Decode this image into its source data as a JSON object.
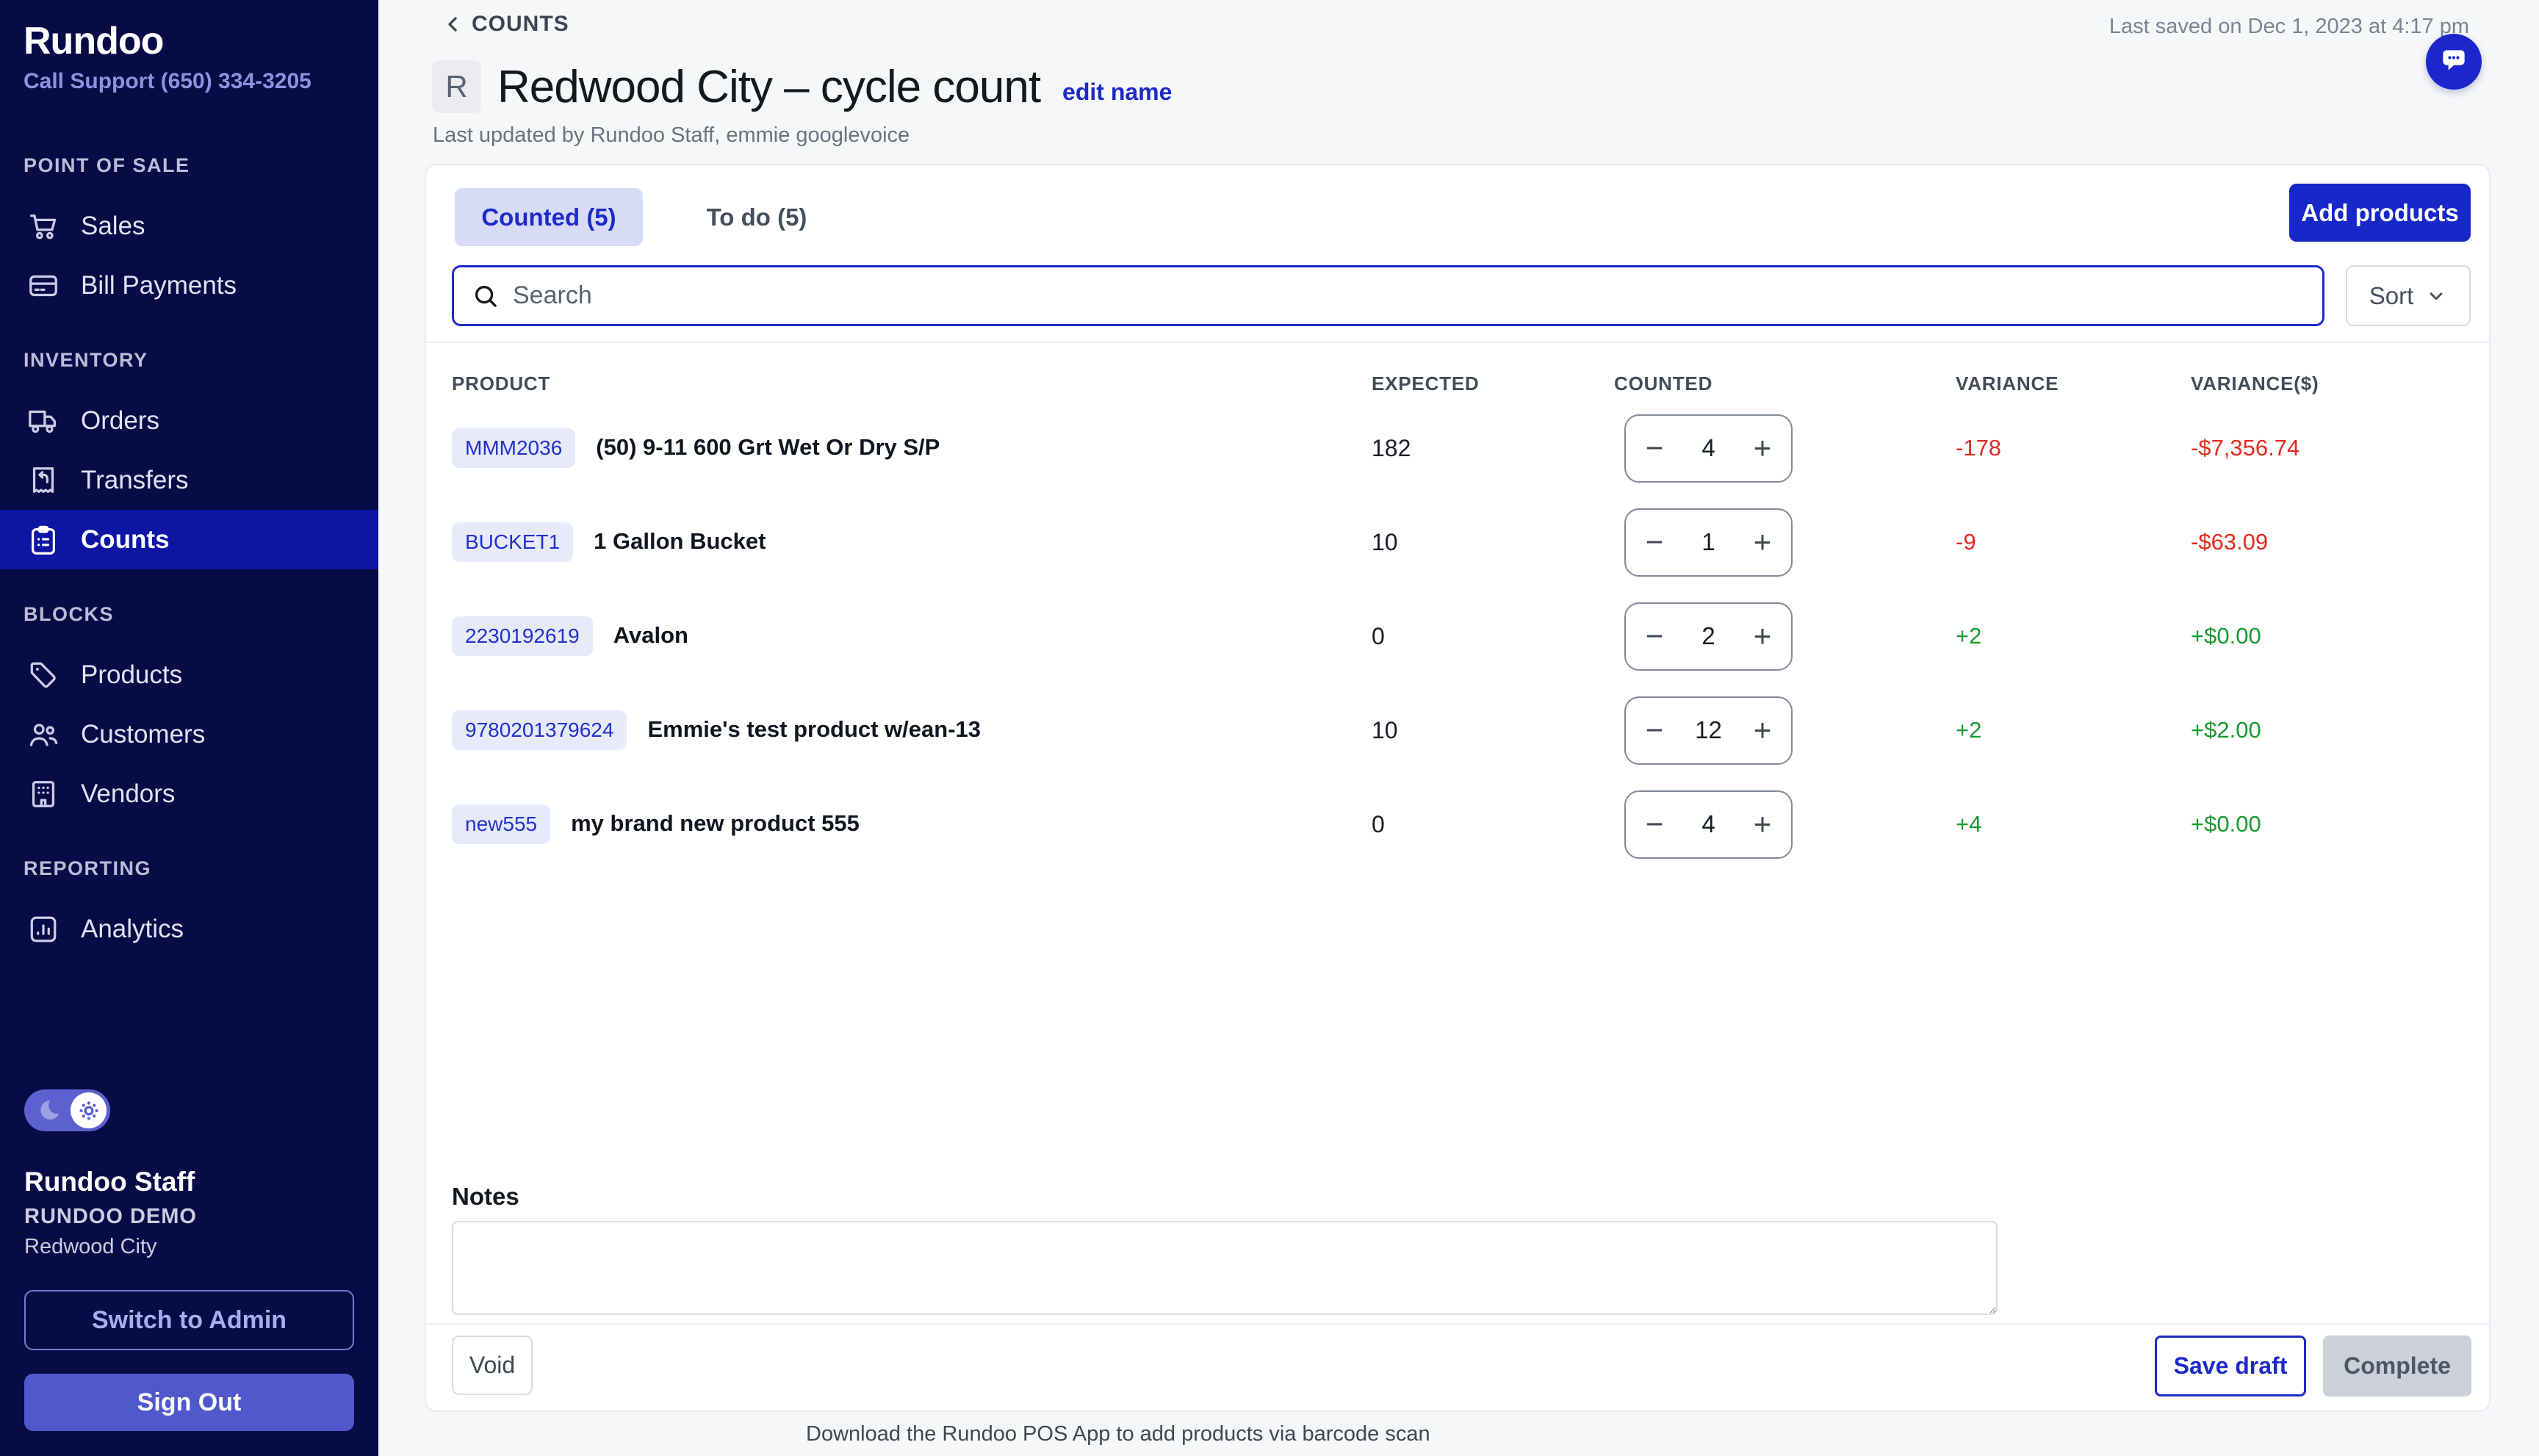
{
  "sidebar": {
    "logo": "Rundoo",
    "support": "Call Support (650) 334-3205",
    "sections": [
      {
        "label": "POINT OF SALE",
        "items": [
          {
            "label": "Sales"
          },
          {
            "label": "Bill Payments"
          }
        ]
      },
      {
        "label": "INVENTORY",
        "items": [
          {
            "label": "Orders"
          },
          {
            "label": "Transfers"
          },
          {
            "label": "Counts",
            "active": true
          }
        ]
      },
      {
        "label": "BLOCKS",
        "items": [
          {
            "label": "Products"
          },
          {
            "label": "Customers"
          },
          {
            "label": "Vendors"
          }
        ]
      },
      {
        "label": "REPORTING",
        "items": [
          {
            "label": "Analytics"
          }
        ]
      }
    ],
    "user": {
      "name": "Rundoo Staff",
      "org": "RUNDOO DEMO",
      "location": "Redwood City"
    },
    "switch_admin_label": "Switch to Admin",
    "sign_out_label": "Sign Out"
  },
  "topbar": {
    "last_saved": "Last saved on Dec 1, 2023 at 4:17 pm"
  },
  "header": {
    "breadcrumb": "COUNTS",
    "avatar_initial": "R",
    "title": "Redwood City – cycle count",
    "edit_link": "edit name",
    "last_updated": "Last updated by Rundoo Staff, emmie googlevoice"
  },
  "toolbar": {
    "tab_counted": "Counted (5)",
    "tab_todo": "To do (5)",
    "add_products_label": "Add products",
    "search_placeholder": "Search",
    "sort_label": "Sort"
  },
  "table": {
    "columns": [
      "PRODUCT",
      "EXPECTED",
      "COUNTED",
      "VARIANCE",
      "VARIANCE($)"
    ],
    "rows": [
      {
        "sku": "MMM2036",
        "name": "(50) 9-11 600 Grt Wet Or Dry S/P",
        "expected": "182",
        "counted": "4",
        "variance": "-178",
        "variance_usd": "-$7,356.74"
      },
      {
        "sku": "BUCKET1",
        "name": "1 Gallon Bucket",
        "expected": "10",
        "counted": "1",
        "variance": "-9",
        "variance_usd": "-$63.09"
      },
      {
        "sku": "2230192619",
        "name": "Avalon",
        "expected": "0",
        "counted": "2",
        "variance": "+2",
        "variance_usd": "+$0.00"
      },
      {
        "sku": "9780201379624",
        "name": "Emmie's test product w/ean-13",
        "expected": "10",
        "counted": "12",
        "variance": "+2",
        "variance_usd": "+$2.00"
      },
      {
        "sku": "new555",
        "name": "my brand new product 555",
        "expected": "0",
        "counted": "4",
        "variance": "+4",
        "variance_usd": "+$0.00"
      }
    ]
  },
  "notes": {
    "label": "Notes",
    "value": ""
  },
  "actions": {
    "void_label": "Void",
    "save_draft_label": "Save draft",
    "complete_label": "Complete"
  },
  "footer_note": "Download the Rundoo POS App to add products via barcode scan",
  "colors": {
    "primary": "#1727c8",
    "sidebar": "#070c46",
    "active_item": "#0d16a3",
    "negative": "#e02b20",
    "positive": "#169a2e",
    "accent_indigo": "#5058cc"
  }
}
